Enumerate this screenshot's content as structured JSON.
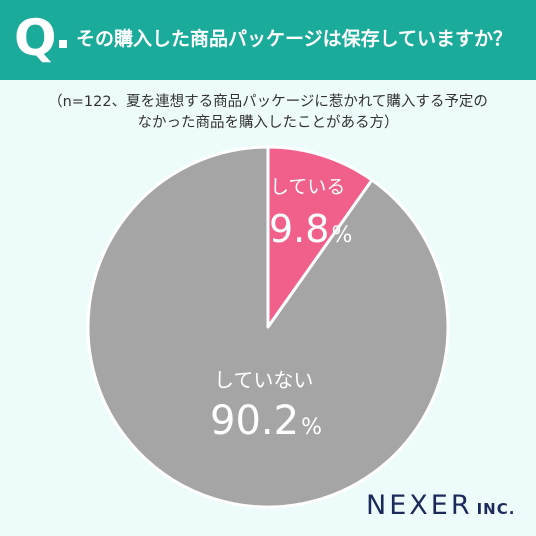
{
  "header": {
    "q_letter": "Q",
    "question": "その購入した商品パッケージは保存していますか？"
  },
  "note": {
    "line1": "（n=122、夏を連想する商品パッケージに惹かれて購入する予定の",
    "line2": "なかった商品を購入したことがある方）"
  },
  "chart_data": {
    "type": "pie",
    "categories": [
      "している",
      "していない"
    ],
    "values": [
      9.8,
      90.2
    ],
    "unit": "%",
    "colors": [
      "#f0608a",
      "#a5a5a5"
    ],
    "start_angle_deg": 0,
    "direction": "clockwise"
  },
  "labels": [
    {
      "label": "している",
      "value": "9.8",
      "unit": "%"
    },
    {
      "label": "していない",
      "value": "90.2",
      "unit": "%"
    }
  ],
  "logo": {
    "main": "NEXER",
    "sub": "INC."
  }
}
